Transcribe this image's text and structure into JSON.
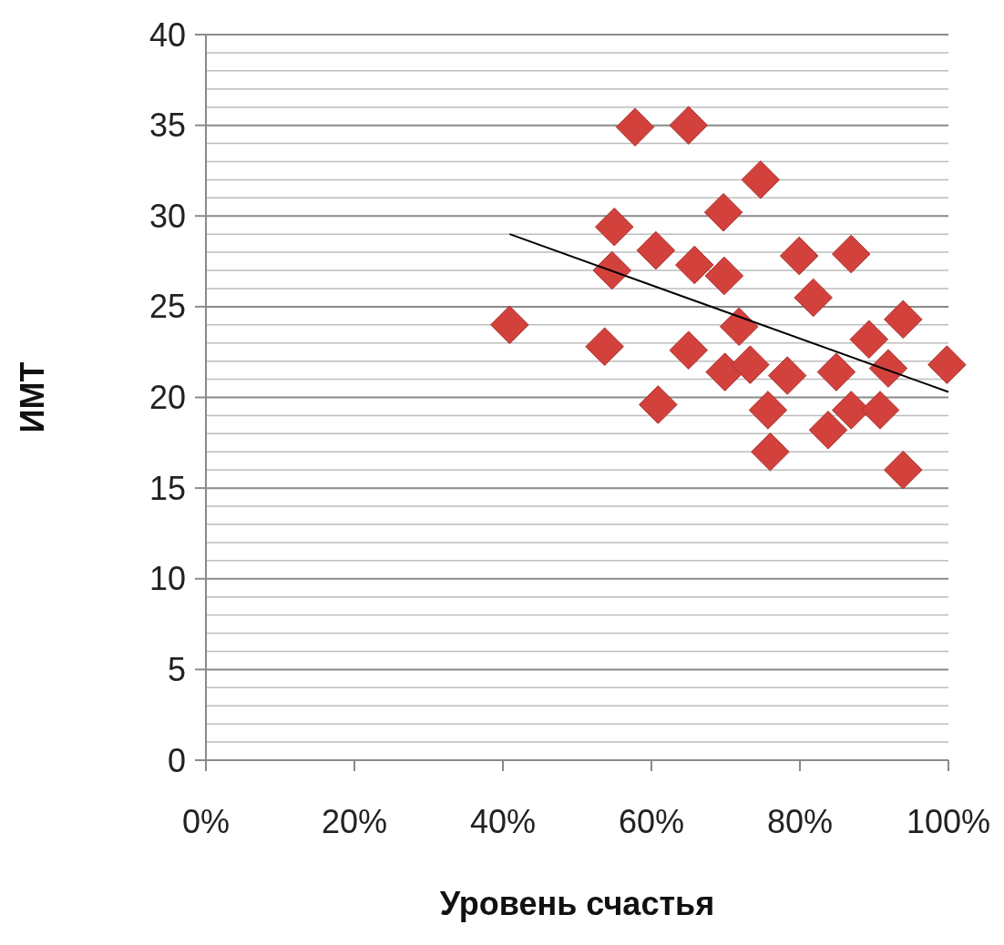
{
  "chart_data": {
    "type": "scatter",
    "xlabel": "Уровень счастья",
    "ylabel": "ИМТ",
    "xlim": [
      0,
      100
    ],
    "ylim": [
      0,
      40
    ],
    "xticks": [
      {
        "value": 0,
        "label": "0%"
      },
      {
        "value": 20,
        "label": "20%"
      },
      {
        "value": 40,
        "label": "40%"
      },
      {
        "value": 60,
        "label": "60%"
      },
      {
        "value": 80,
        "label": "80%"
      },
      {
        "value": 100,
        "label": "100%"
      }
    ],
    "yticks": [
      0,
      {
        "value": 1,
        "label": null
      },
      {
        "value": 2,
        "label": null
      },
      {
        "value": 3,
        "label": null
      },
      {
        "value": 4,
        "label": null
      },
      5,
      {
        "value": 6,
        "label": null
      },
      {
        "value": 7,
        "label": null
      },
      {
        "value": 8,
        "label": null
      },
      {
        "value": 9,
        "label": null
      },
      10,
      {
        "value": 11,
        "label": null
      },
      {
        "value": 12,
        "label": null
      },
      {
        "value": 13,
        "label": null
      },
      {
        "value": 14,
        "label": null
      },
      15,
      {
        "value": 16,
        "label": null
      },
      {
        "value": 17,
        "label": null
      },
      {
        "value": 18,
        "label": null
      },
      {
        "value": 19,
        "label": null
      },
      20,
      {
        "value": 21,
        "label": null
      },
      {
        "value": 22,
        "label": null
      },
      {
        "value": 23,
        "label": null
      },
      {
        "value": 24,
        "label": null
      },
      25,
      {
        "value": 26,
        "label": null
      },
      {
        "value": 27,
        "label": null
      },
      {
        "value": 28,
        "label": null
      },
      {
        "value": 29,
        "label": null
      },
      30,
      {
        "value": 31,
        "label": null
      },
      {
        "value": 32,
        "label": null
      },
      {
        "value": 33,
        "label": null
      },
      {
        "value": 34,
        "label": null
      },
      35,
      {
        "value": 36,
        "label": null
      },
      {
        "value": 37,
        "label": null
      },
      {
        "value": 38,
        "label": null
      },
      {
        "value": 39,
        "label": null
      },
      40
    ],
    "grid": "y",
    "marker": "diamond",
    "series": [
      {
        "color": "#d2413c",
        "x": [
          40.9,
          57.8,
          65.0,
          55.0,
          54.7,
          60.6,
          65.8,
          69.7,
          74.7,
          69.8,
          53.7,
          65.0,
          60.9,
          71.8,
          69.9,
          73.3,
          78.3,
          75.7,
          76.0,
          79.9,
          81.8,
          86.9,
          93.9,
          99.8,
          84.9,
          83.8,
          86.9,
          90.8,
          93.9,
          91.9,
          89.3
        ],
        "values": [
          24.0,
          34.9,
          35.0,
          29.4,
          27.0,
          28.1,
          27.3,
          30.2,
          32.0,
          26.7,
          22.8,
          22.6,
          19.6,
          23.9,
          21.4,
          21.8,
          21.2,
          19.3,
          17.0,
          27.8,
          25.5,
          27.9,
          24.3,
          21.8,
          21.4,
          18.2,
          19.3,
          19.3,
          16.0,
          21.6,
          23.2
        ]
      },
      {
        "type": "line",
        "color": "#000000",
        "marker": "none",
        "x": [
          40.9,
          100
        ],
        "values": [
          29.0,
          20.3
        ]
      }
    ]
  }
}
